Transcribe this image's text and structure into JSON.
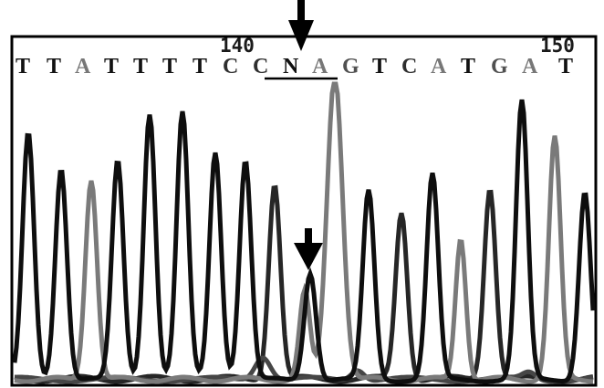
{
  "position_labels": [
    "140",
    "150"
  ],
  "sequence": [
    "T",
    "T",
    "A",
    "T",
    "T",
    "T",
    "T",
    "C",
    "C",
    "N",
    "A",
    "G",
    "T",
    "C",
    "A",
    "T",
    "G",
    "A",
    "T"
  ],
  "colors": {
    "A": "#777777",
    "T": "#111111",
    "C": "#2e2e2e",
    "G": "#505050",
    "N": "#111111",
    "A_trace": "#7a7a7a",
    "T_trace": "#0e0e0e",
    "C_trace": "#262626",
    "G_trace": "#464646"
  },
  "annotations": {
    "top_arrow": "arrow pointing to N at position 142",
    "peak_arrow": "arrow pointing to minor overlapping peak under N"
  }
}
